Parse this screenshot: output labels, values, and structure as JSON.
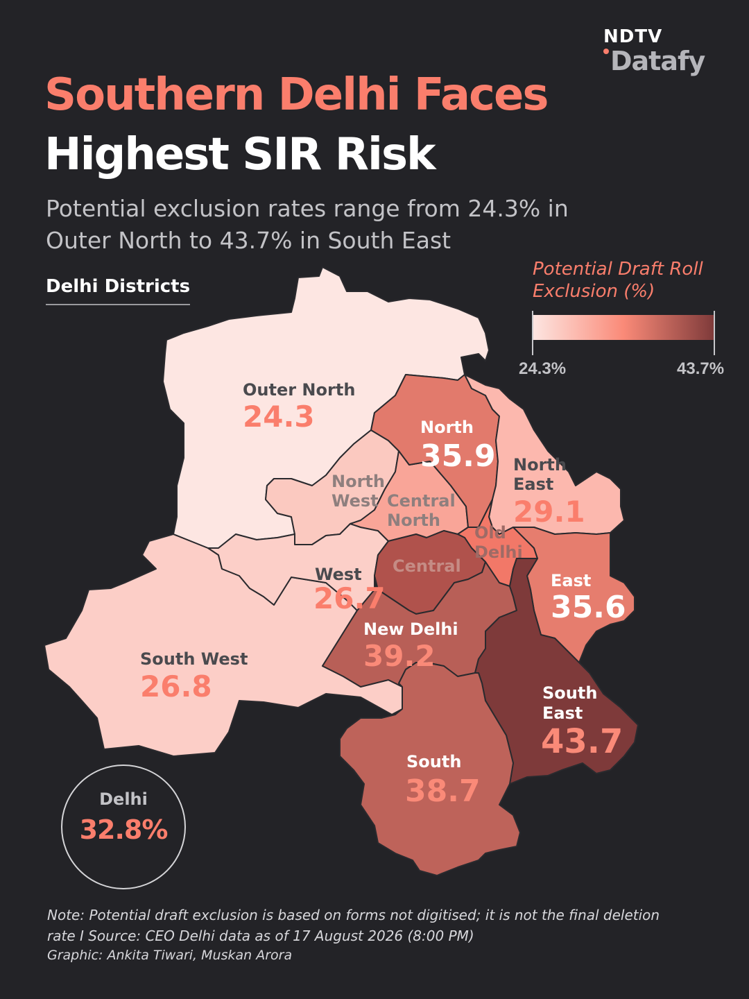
{
  "brand": {
    "top": "NDTV",
    "bottom": "Datafy"
  },
  "title_line1": "Southern Delhi Faces",
  "title_line2": "Highest SIR Risk",
  "subtitle": "Potential exclusion rates range from 24.3% in Outer North to 43.7% in South East",
  "map_heading": "Delhi Districts",
  "legend": {
    "title": "Potential Draft Roll Exclusion (%)",
    "min": "24.3%",
    "max": "43.7%",
    "colors": [
      "#fde6e2",
      "#fa8a78",
      "#7e3a3a"
    ]
  },
  "districts": [
    {
      "id": "outer-north",
      "name": "Outer North",
      "value": 24.3
    },
    {
      "id": "north",
      "name": "North",
      "value": 35.9
    },
    {
      "id": "north-east",
      "name": "North East",
      "value": 29.1
    },
    {
      "id": "north-west",
      "name": "North West",
      "value": null
    },
    {
      "id": "central-north",
      "name": "Central North",
      "value": null
    },
    {
      "id": "old-delhi",
      "name": "Old Delhi",
      "value": null
    },
    {
      "id": "central",
      "name": "Central",
      "value": null
    },
    {
      "id": "west",
      "name": "West",
      "value": 26.7
    },
    {
      "id": "east",
      "name": "East",
      "value": 35.6
    },
    {
      "id": "new-delhi",
      "name": "New Delhi",
      "value": 39.2
    },
    {
      "id": "south-west",
      "name": "South West",
      "value": 26.8
    },
    {
      "id": "south-east",
      "name": "South East",
      "value": 43.7
    },
    {
      "id": "south",
      "name": "South",
      "value": 38.7
    }
  ],
  "overall": {
    "name": "Delhi",
    "value": "32.8%"
  },
  "note": "Note: Potential draft exclusion is based on forms not digitised; it is not the final deletion rate I Source: CEO Delhi data as of 17 August 2026 (8:00 PM)",
  "credit": "Graphic: Ankita Tiwari, Muskan Arora"
}
